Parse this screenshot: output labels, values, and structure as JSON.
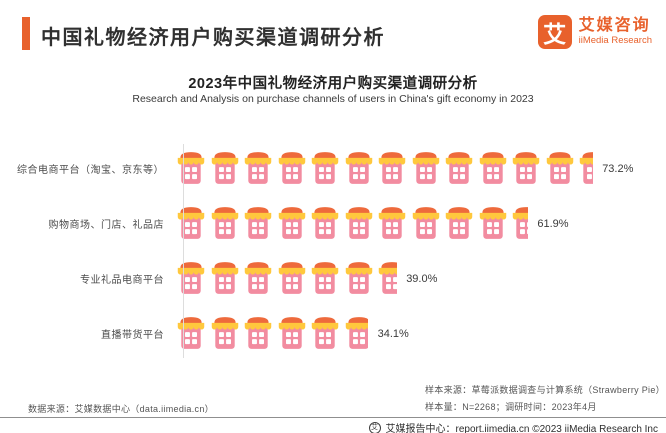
{
  "header": {
    "title": "中国礼物经济用户购买渠道调研分析",
    "logo": {
      "mark": "艾",
      "name_cn": "艾媒咨询",
      "name_en": "iiMedia Research"
    }
  },
  "chart": {
    "title": "2023年中国礼物经济用户购买渠道调研分析",
    "subtitle": "Research and Analysis on purchase channels of users in China's gift economy in 2023",
    "percent_per_icon": 5.86,
    "rows": [
      {
        "label": "综合电商平台（淘宝、京东等）",
        "value": 73.2,
        "value_label": "73.2%"
      },
      {
        "label": "购物商场、门店、礼品店",
        "value": 61.9,
        "value_label": "61.9%"
      },
      {
        "label": "专业礼品电商平台",
        "value": 39.0,
        "value_label": "39.0%"
      },
      {
        "label": "直播带货平台",
        "value": 34.1,
        "value_label": "34.1%"
      }
    ]
  },
  "chart_data": {
    "type": "bar",
    "orientation": "horizontal",
    "style": "pictogram (shop icons, each icon ≈ 5.86%)",
    "title": "2023年中国礼物经济用户购买渠道调研分析",
    "subtitle": "Research and Analysis on purchase channels of users in China's gift economy in 2023",
    "categories": [
      "综合电商平台（淘宝、京东等）",
      "购物商场、门店、礼品店",
      "专业礼品电商平台",
      "直播带货平台"
    ],
    "values": [
      73.2,
      61.9,
      39.0,
      34.1
    ],
    "value_labels": [
      "73.2%",
      "61.9%",
      "39.0%",
      "34.1%"
    ],
    "unit": "%",
    "xlim": [
      0,
      100
    ],
    "grid": false,
    "legend": false
  },
  "footer": {
    "data_source": "数据来源：艾媒数据中心（data.iimedia.cn）",
    "sample_source": "样本来源：草莓派数据调查与计算系统（Strawberry Pie）",
    "sample_info": "样本量：N=2268；调研时间：2023年4月",
    "report_center": "艾媒报告中心：report.iimedia.cn  ©2023  iiMedia Research Inc",
    "bottom_logo_mark": "艾"
  },
  "colors": {
    "accent": "#E8612C",
    "icon_roof": "#EE6A3C",
    "icon_awning": "#FFC83D",
    "icon_body": "#F28CA0",
    "icon_window": "#FFFFFF"
  }
}
